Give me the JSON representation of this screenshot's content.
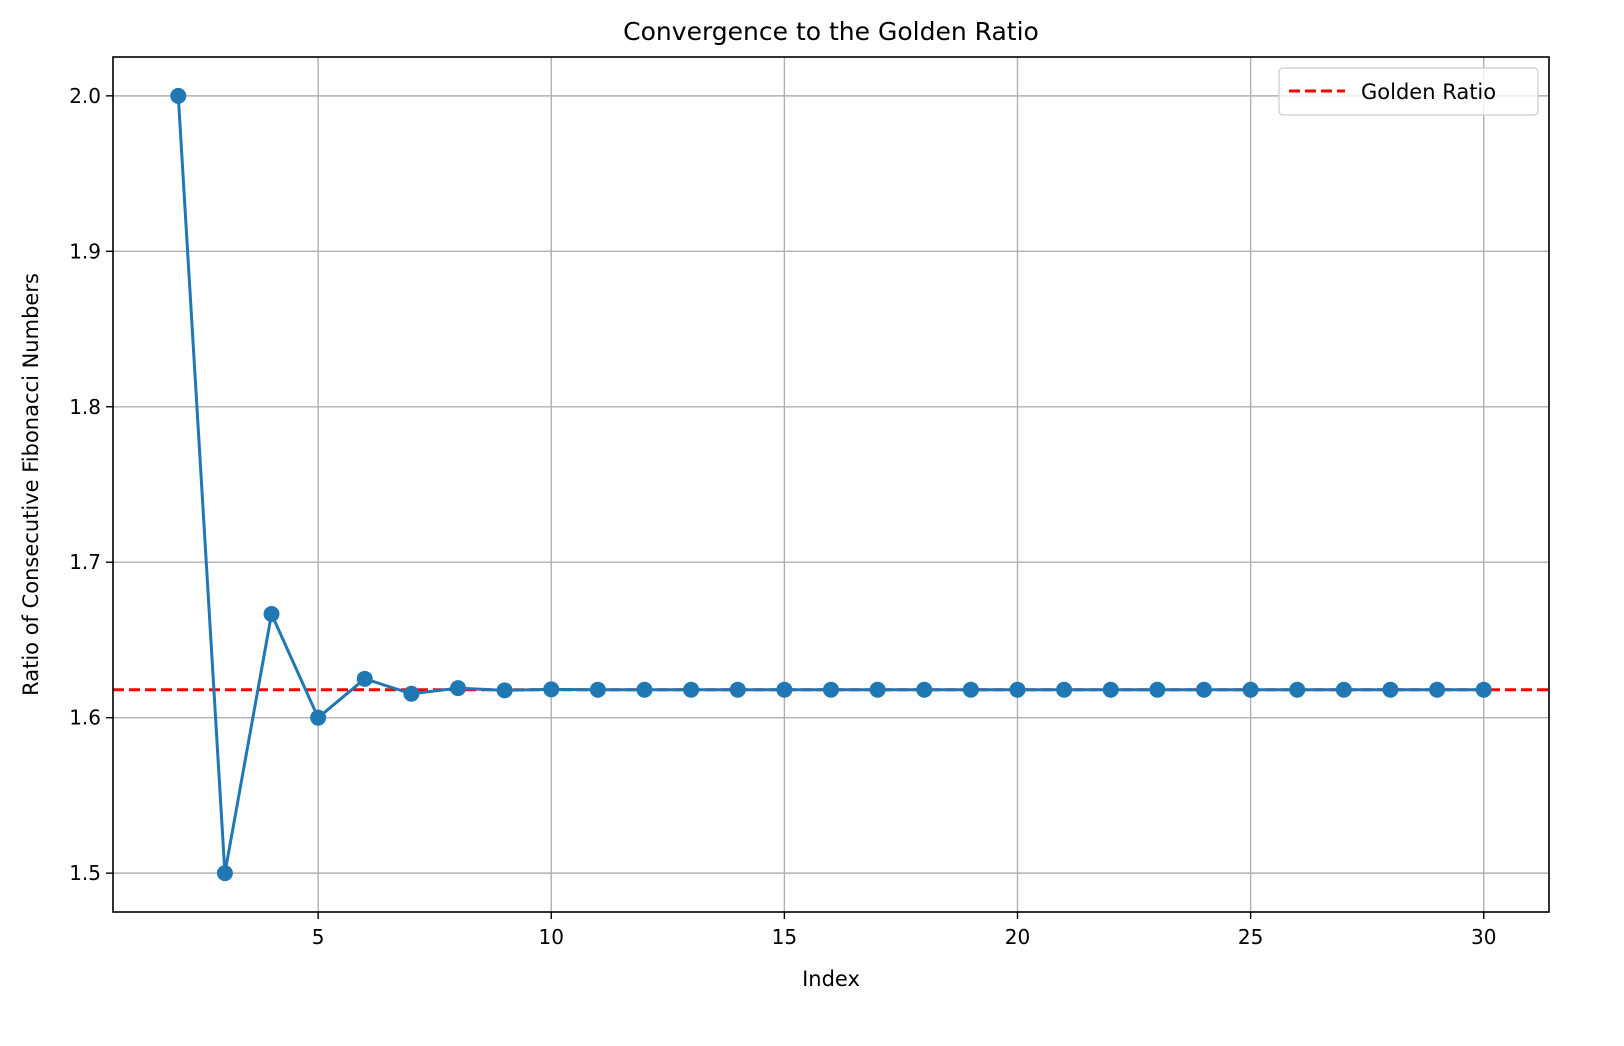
{
  "chart_data": {
    "type": "line",
    "title": "Convergence to the Golden Ratio",
    "xlabel": "Index",
    "ylabel": "Ratio of Consecutive Fibonacci Numbers",
    "xlim": [
      0.6,
      31.4
    ],
    "ylim": [
      1.475,
      2.025
    ],
    "xticks": [
      5,
      10,
      15,
      20,
      25,
      30
    ],
    "yticks": [
      1.5,
      1.6,
      1.7,
      1.8,
      1.9,
      2.0
    ],
    "ytick_labels": [
      "1.5",
      "1.6",
      "1.7",
      "1.8",
      "1.9",
      "2.0"
    ],
    "grid": true,
    "legend": {
      "placement": "top-right"
    },
    "series": [
      {
        "color": "#1f77b4",
        "marker": "circle",
        "x": [
          2,
          3,
          4,
          5,
          6,
          7,
          8,
          9,
          10,
          11,
          12,
          13,
          14,
          15,
          16,
          17,
          18,
          19,
          20,
          21,
          22,
          23,
          24,
          25,
          26,
          27,
          28,
          29,
          30
        ],
        "values": [
          2.0,
          1.5,
          1.6667,
          1.6,
          1.625,
          1.6154,
          1.619,
          1.6176,
          1.6182,
          1.618,
          1.618,
          1.618,
          1.618,
          1.618,
          1.618,
          1.618,
          1.618,
          1.618,
          1.618,
          1.618,
          1.618,
          1.618,
          1.618,
          1.618,
          1.618,
          1.618,
          1.618,
          1.618,
          1.618
        ]
      }
    ],
    "reference_lines": [
      {
        "name": "Golden Ratio",
        "y": 1.618,
        "color": "#ff0000",
        "style": "dashed"
      }
    ]
  }
}
